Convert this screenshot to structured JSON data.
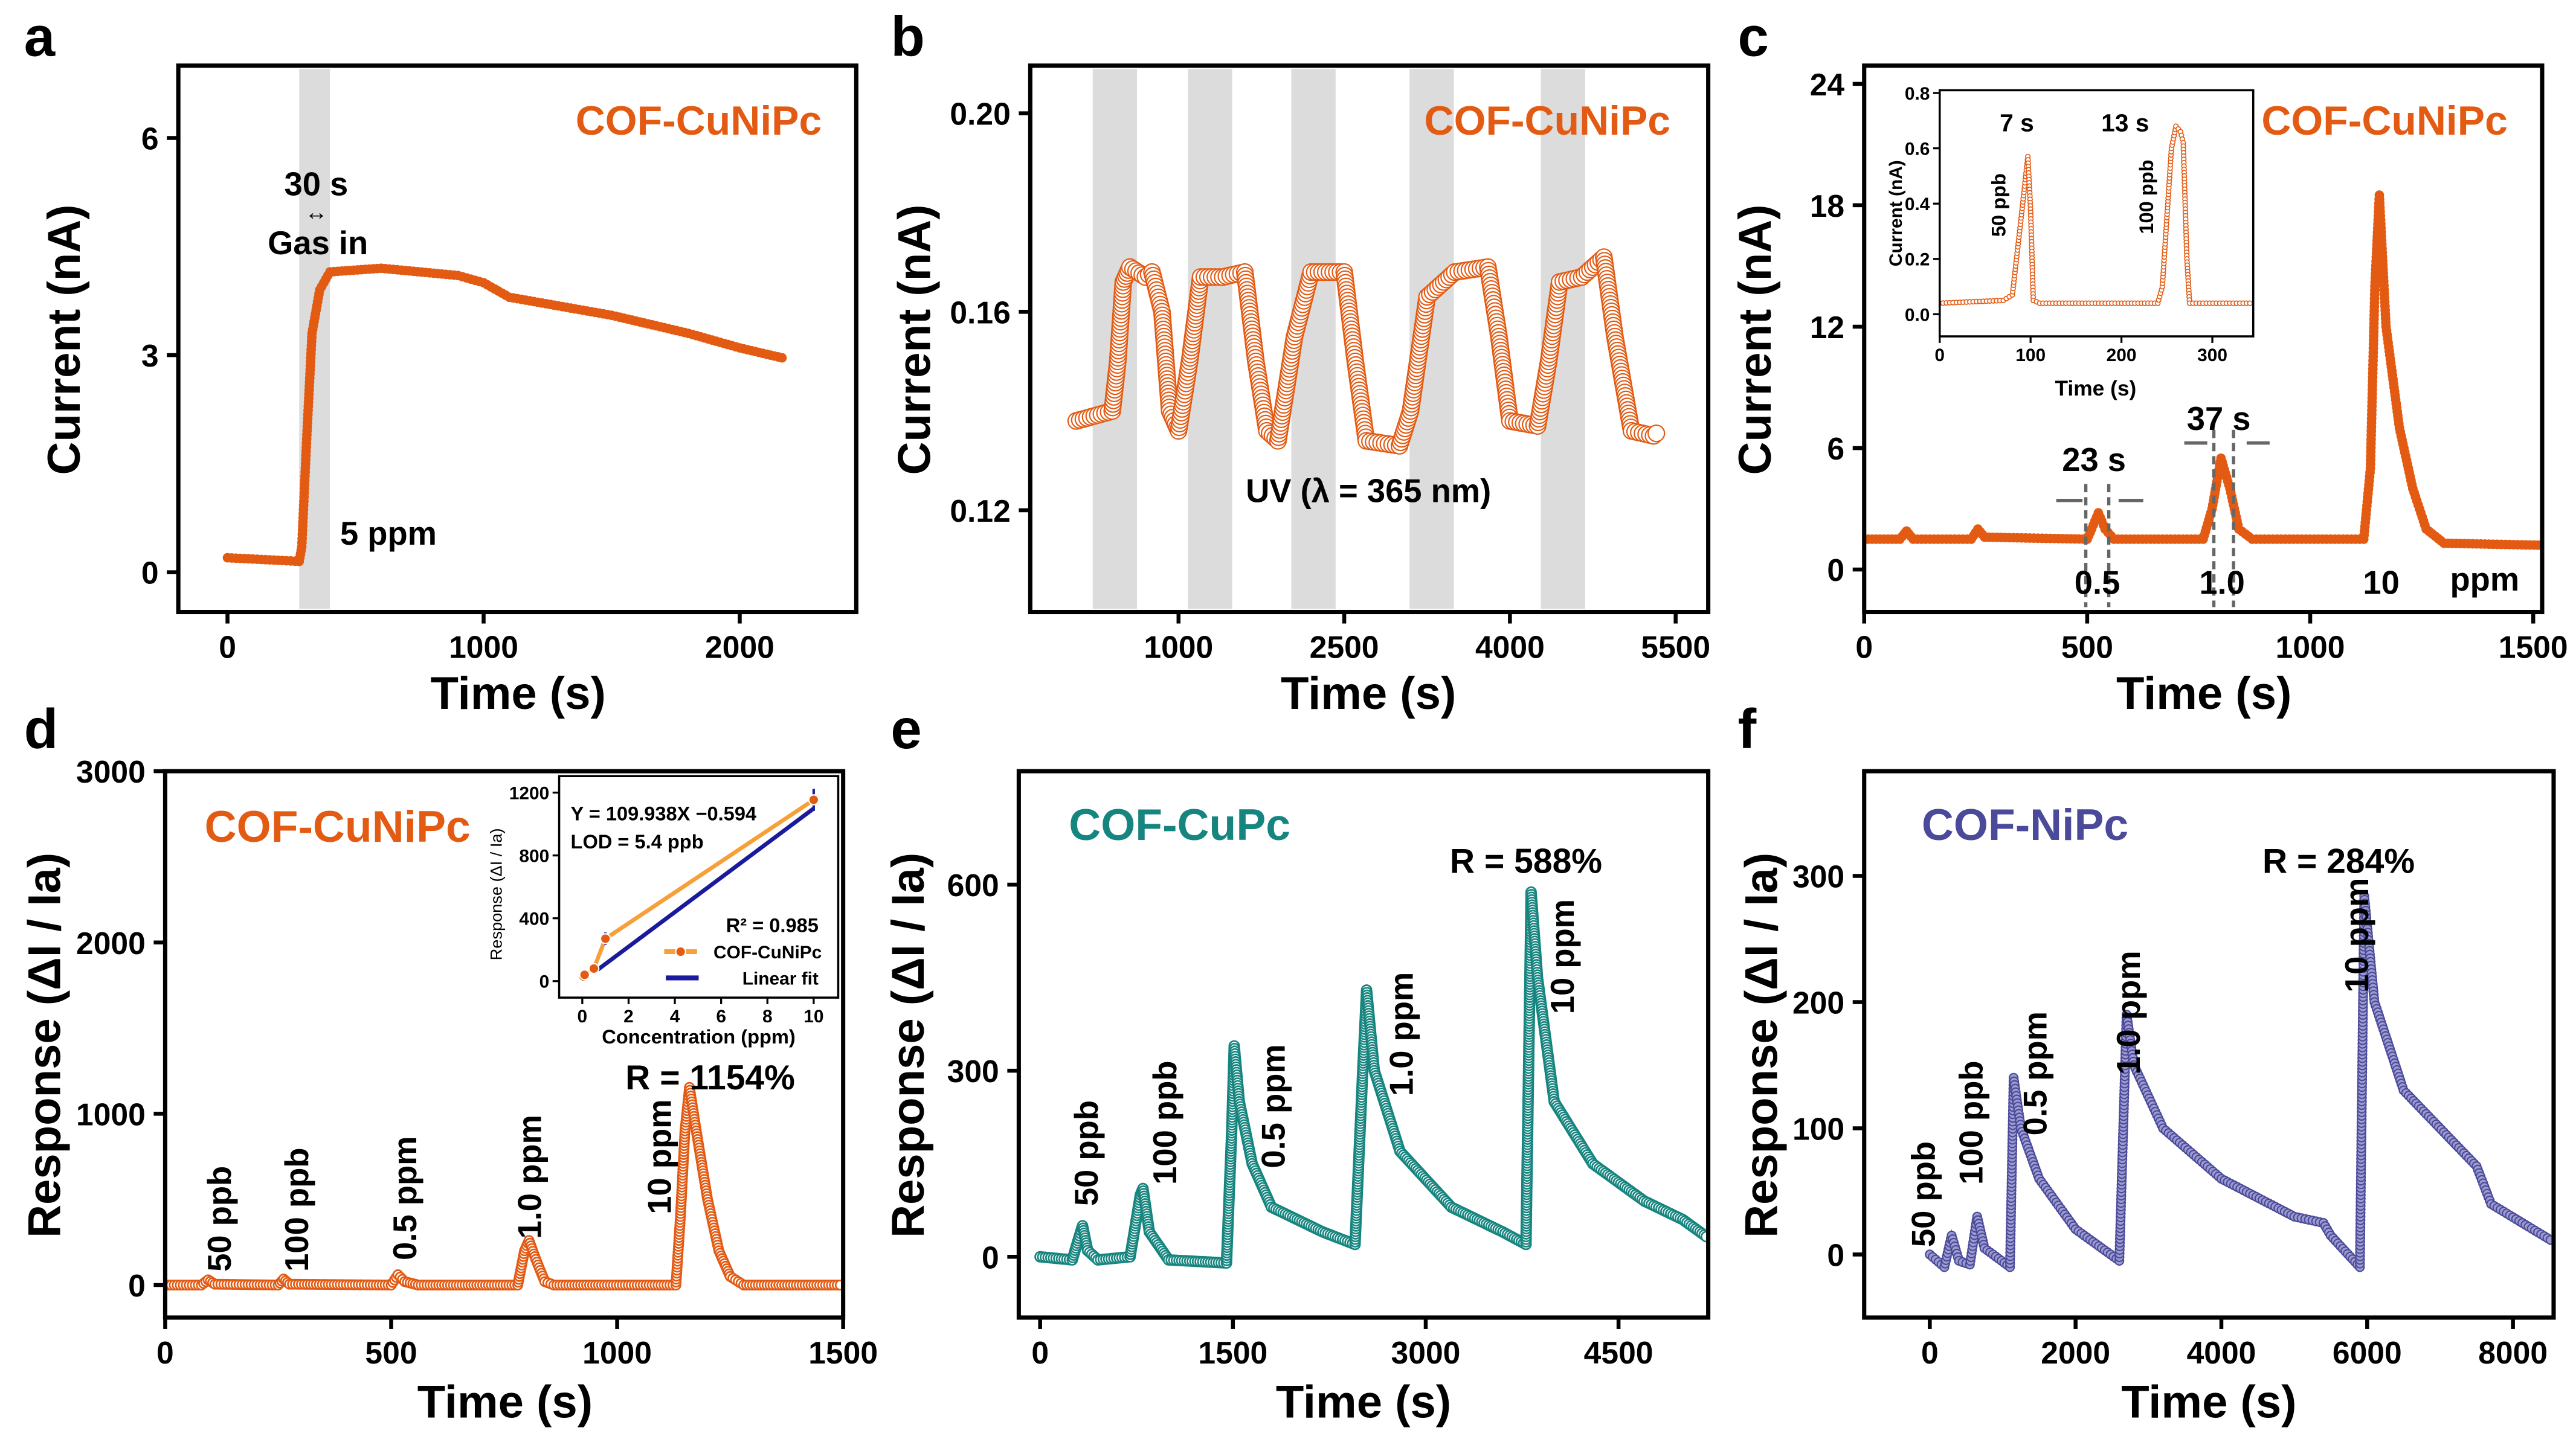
{
  "colors": {
    "cunipc": "#e35a12",
    "cunipc_legend": "#f7a03a",
    "cupc": "#17857f",
    "nipc": "#4b4a9a",
    "nipc_fill": "#9d9cd0",
    "ratio": "#ff1a1a",
    "annotation": "#4a4a6e",
    "gas_in": "#9a5416",
    "fit": "#1a1a9c",
    "shade": "#dcdcdc"
  },
  "panels": {
    "a": {
      "letter": "a",
      "name": "COF-CuNiPc",
      "time": "30 s",
      "gas_in": "Gas in",
      "conc": "5 ppm"
    },
    "b": {
      "letter": "b",
      "name": "COF-CuNiPc",
      "uv": "UV (λ = 365 nm)"
    },
    "c": {
      "letter": "c",
      "name": "COF-CuNiPc",
      "t1": "23 s",
      "t2": "37 s",
      "c1": "0.5",
      "c2": "1.0",
      "c3": "10",
      "unit": "ppm",
      "inset": {
        "t1": "7 s",
        "t2": "13 s",
        "c1": "50 ppb",
        "c2": "100 ppb"
      }
    },
    "d": {
      "letter": "d",
      "name": "COF-CuNiPc",
      "ratio": "R = 1154%",
      "labels": [
        "50 ppb",
        "100 ppb",
        "0.5 ppm",
        "1.0 ppm",
        "10 ppm"
      ],
      "inset": {
        "equation": "Y = 109.938X −0.594",
        "lod": "LOD = 5.4 ppb",
        "r2": "R² = 0.985",
        "legend_data": "COF-CuNiPc",
        "legend_fit": "Linear fit"
      }
    },
    "e": {
      "letter": "e",
      "name": "COF-CuPc",
      "ratio": "R = 588%",
      "labels": [
        "50 ppb",
        "100 ppb",
        "0.5 ppm",
        "1.0 ppm",
        "10 ppm"
      ]
    },
    "f": {
      "letter": "f",
      "name": "COF-NiPc",
      "ratio": "R = 284%",
      "labels": [
        "50 ppb",
        "100 ppb",
        "0.5 ppm",
        "1.0 ppm",
        "10 ppm"
      ]
    }
  },
  "chart_data": [
    {
      "id": "a",
      "type": "line",
      "xlabel": "Time (s)",
      "ylabel": "Current (nA)",
      "xlim": [
        -192,
        2455
      ],
      "ylim": [
        -0.55,
        7.0
      ],
      "xticks": [
        "0",
        "1000",
        "2000"
      ],
      "yticks": [
        "0",
        "3",
        "6"
      ],
      "shaded": [
        [
          280,
          400
        ]
      ],
      "marker": "filled-circle",
      "series": [
        {
          "name": "COF-CuNiPc",
          "points": [
            [
              0,
              0.2
            ],
            [
              280,
              0.15
            ],
            [
              290,
              0.35
            ],
            [
              310,
              1.9
            ],
            [
              330,
              3.3
            ],
            [
              360,
              3.9
            ],
            [
              400,
              4.15
            ],
            [
              600,
              4.2
            ],
            [
              900,
              4.1
            ],
            [
              1000,
              4.0
            ],
            [
              1100,
              3.8
            ],
            [
              1500,
              3.55
            ],
            [
              1800,
              3.3
            ],
            [
              2000,
              3.1
            ],
            [
              2180,
              2.95
            ]
          ]
        }
      ]
    },
    {
      "id": "b",
      "type": "line",
      "xlabel": "Time (s)",
      "ylabel": "Current (nA)",
      "xlim": [
        -342,
        5795
      ],
      "ylim": [
        0.0995,
        0.2096
      ],
      "xticks": [
        "1000",
        "2500",
        "4000",
        "5500"
      ],
      "yticks": [
        "0.12",
        "0.16",
        "0.20"
      ],
      "shaded": [
        [
          223,
          624
        ],
        [
          1085,
          1486
        ],
        [
          2021,
          2422
        ],
        [
          3091,
          3492
        ],
        [
          4280,
          4681
        ]
      ],
      "marker": "hollow-circle",
      "series": [
        {
          "name": "COF-CuNiPc",
          "points": [
            [
              74,
              0.138
            ],
            [
              400,
              0.14
            ],
            [
              450,
              0.15
            ],
            [
              500,
              0.166
            ],
            [
              560,
              0.169
            ],
            [
              700,
              0.167
            ],
            [
              760,
              0.168
            ],
            [
              850,
              0.16
            ],
            [
              920,
              0.14
            ],
            [
              1000,
              0.136
            ],
            [
              1100,
              0.15
            ],
            [
              1200,
              0.167
            ],
            [
              1400,
              0.167
            ],
            [
              1600,
              0.168
            ],
            [
              1700,
              0.15
            ],
            [
              1800,
              0.136
            ],
            [
              1900,
              0.134
            ],
            [
              2050,
              0.155
            ],
            [
              2200,
              0.168
            ],
            [
              2500,
              0.168
            ],
            [
              2600,
              0.15
            ],
            [
              2700,
              0.134
            ],
            [
              3000,
              0.133
            ],
            [
              3100,
              0.14
            ],
            [
              3250,
              0.163
            ],
            [
              3500,
              0.168
            ],
            [
              3800,
              0.169
            ],
            [
              3900,
              0.155
            ],
            [
              4000,
              0.138
            ],
            [
              4250,
              0.137
            ],
            [
              4350,
              0.15
            ],
            [
              4450,
              0.166
            ],
            [
              4650,
              0.167
            ],
            [
              4850,
              0.171
            ],
            [
              4950,
              0.155
            ],
            [
              5100,
              0.136
            ],
            [
              5300,
              0.135
            ],
            [
              5350,
              0.136
            ]
          ]
        }
      ]
    },
    {
      "id": "c",
      "type": "line",
      "xlabel": "Time (s)",
      "ylabel": "Current (nA)",
      "xlim": [
        0,
        1520
      ],
      "ylim": [
        -2.1,
        24.9
      ],
      "xticks": [
        "0",
        "500",
        "1000",
        "1500"
      ],
      "yticks": [
        "0",
        "6",
        "12",
        "18",
        "24"
      ],
      "marker": "filled-circle",
      "series": [
        {
          "name": "COF-CuNiPc",
          "points": [
            [
              0,
              1.5
            ],
            [
              80,
              1.5
            ],
            [
              95,
              1.9
            ],
            [
              110,
              1.5
            ],
            [
              240,
              1.5
            ],
            [
              255,
              2.0
            ],
            [
              270,
              1.6
            ],
            [
              500,
              1.5
            ],
            [
              510,
              2.0
            ],
            [
              525,
              2.8
            ],
            [
              540,
              2.0
            ],
            [
              560,
              1.5
            ],
            [
              760,
              1.5
            ],
            [
              780,
              3
            ],
            [
              800,
              5.5
            ],
            [
              820,
              4
            ],
            [
              840,
              2
            ],
            [
              870,
              1.5
            ],
            [
              1120,
              1.5
            ],
            [
              1135,
              5
            ],
            [
              1145,
              14
            ],
            [
              1155,
              18.5
            ],
            [
              1170,
              12
            ],
            [
              1200,
              7
            ],
            [
              1230,
              4
            ],
            [
              1260,
              2
            ],
            [
              1300,
              1.3
            ],
            [
              1520,
              1.2
            ]
          ]
        }
      ]
    },
    {
      "id": "c-inset",
      "type": "line",
      "xlabel": "Time (s)",
      "ylabel": "Current (nA)",
      "xlim": [
        0,
        345
      ],
      "ylim": [
        -0.08,
        0.81
      ],
      "xticks": [
        "0",
        "100",
        "200",
        "300"
      ],
      "yticks": [
        "0.0",
        "0.2",
        "0.4",
        "0.6",
        "0.8"
      ],
      "marker": "small-circle",
      "series": [
        {
          "name": "COF-CuNiPc",
          "points": [
            [
              0,
              0.04
            ],
            [
              70,
              0.05
            ],
            [
              80,
              0.07
            ],
            [
              90,
              0.36
            ],
            [
              95,
              0.51
            ],
            [
              97,
              0.57
            ],
            [
              100,
              0.38
            ],
            [
              103,
              0.05
            ],
            [
              110,
              0.04
            ],
            [
              240,
              0.04
            ],
            [
              245,
              0.1
            ],
            [
              250,
              0.35
            ],
            [
              255,
              0.6
            ],
            [
              260,
              0.68
            ],
            [
              265,
              0.66
            ],
            [
              268,
              0.62
            ],
            [
              272,
              0.2
            ],
            [
              275,
              0.04
            ],
            [
              345,
              0.04
            ]
          ]
        }
      ]
    },
    {
      "id": "d",
      "type": "line",
      "xlabel": "Time (s)",
      "ylabel": "Response (ΔI / Ia)",
      "xlim": [
        0,
        1500
      ],
      "ylim": [
        -190,
        3000
      ],
      "xticks": [
        "0",
        "500",
        "1000",
        "1500"
      ],
      "yticks": [
        "0",
        "1000",
        "2000",
        "3000"
      ],
      "marker": "hollow-circle",
      "series": [
        {
          "name": "COF-CuNiPc",
          "points": [
            [
              0,
              0
            ],
            [
              80,
              0
            ],
            [
              95,
              30
            ],
            [
              110,
              5
            ],
            [
              250,
              0
            ],
            [
              262,
              35
            ],
            [
              275,
              5
            ],
            [
              500,
              0
            ],
            [
              515,
              60
            ],
            [
              530,
              20
            ],
            [
              560,
              0
            ],
            [
              780,
              0
            ],
            [
              795,
              200
            ],
            [
              805,
              260
            ],
            [
              820,
              150
            ],
            [
              840,
              20
            ],
            [
              860,
              0
            ],
            [
              1130,
              0
            ],
            [
              1140,
              400
            ],
            [
              1150,
              900
            ],
            [
              1160,
              1154
            ],
            [
              1175,
              900
            ],
            [
              1200,
              500
            ],
            [
              1225,
              200
            ],
            [
              1250,
              50
            ],
            [
              1280,
              0
            ],
            [
              1500,
              0
            ]
          ]
        }
      ]
    },
    {
      "id": "d-inset",
      "type": "scatter",
      "xlabel": "Concentration (ppm)",
      "ylabel": "Response (ΔI / Ia)",
      "xlim": [
        -1.0,
        11.06
      ],
      "ylim": [
        -105,
        1305
      ],
      "xticks": [
        "0",
        "2",
        "4",
        "6",
        "8",
        "10"
      ],
      "yticks": [
        "0",
        "400",
        "800",
        "1200"
      ],
      "series": [
        {
          "name": "COF-CuNiPc",
          "x": [
            0.05,
            0.1,
            0.5,
            1,
            10
          ],
          "y": [
            30,
            40,
            80,
            270,
            1154
          ],
          "error": [
            30,
            25,
            35,
            40,
            70
          ]
        },
        {
          "name": "Linear fit",
          "slope": 109.938,
          "intercept": -0.594,
          "x_range": [
            0.5,
            10
          ]
        }
      ]
    },
    {
      "id": "e",
      "type": "line",
      "xlabel": "Time (s)",
      "ylabel": "Response (ΔI / Ia)",
      "xlim": [
        -166,
        5198
      ],
      "ylim": [
        -98,
        783
      ],
      "xticks": [
        "0",
        "1500",
        "3000",
        "4500"
      ],
      "yticks": [
        "0",
        "300",
        "600"
      ],
      "marker": "hollow-circle",
      "series": [
        {
          "name": "COF-CuPc",
          "points": [
            [
              0,
              0
            ],
            [
              250,
              -5
            ],
            [
              300,
              30
            ],
            [
              330,
              50
            ],
            [
              370,
              10
            ],
            [
              450,
              -5
            ],
            [
              700,
              0
            ],
            [
              780,
              100
            ],
            [
              800,
              110
            ],
            [
              850,
              40
            ],
            [
              1000,
              -5
            ],
            [
              1450,
              -10
            ],
            [
              1490,
              200
            ],
            [
              1510,
              340
            ],
            [
              1550,
              250
            ],
            [
              1650,
              150
            ],
            [
              1800,
              80
            ],
            [
              2200,
              40
            ],
            [
              2450,
              20
            ],
            [
              2510,
              300
            ],
            [
              2540,
              430
            ],
            [
              2600,
              300
            ],
            [
              2800,
              170
            ],
            [
              3200,
              80
            ],
            [
              3600,
              40
            ],
            [
              3780,
              20
            ],
            [
              3800,
              300
            ],
            [
              3820,
              588
            ],
            [
              3870,
              450
            ],
            [
              4000,
              250
            ],
            [
              4300,
              150
            ],
            [
              4700,
              90
            ],
            [
              5000,
              60
            ],
            [
              5200,
              30
            ]
          ]
        }
      ]
    },
    {
      "id": "f",
      "type": "line",
      "xlabel": "Time (s)",
      "ylabel": "Response (ΔI / Ia)",
      "xlim": [
        -900,
        8558
      ],
      "ylim": [
        -50,
        383
      ],
      "xticks": [
        "0",
        "2000",
        "4000",
        "6000",
        "8000"
      ],
      "yticks": [
        "0",
        "100",
        "200",
        "300"
      ],
      "marker": "filled-circle",
      "series": [
        {
          "name": "COF-NiPc",
          "points": [
            [
              0,
              0
            ],
            [
              200,
              -10
            ],
            [
              300,
              15
            ],
            [
              400,
              -5
            ],
            [
              550,
              -8
            ],
            [
              650,
              30
            ],
            [
              750,
              5
            ],
            [
              1100,
              -10
            ],
            [
              1150,
              140
            ],
            [
              1250,
              100
            ],
            [
              1500,
              60
            ],
            [
              2000,
              20
            ],
            [
              2600,
              -5
            ],
            [
              2700,
              190
            ],
            [
              2800,
              150
            ],
            [
              3200,
              100
            ],
            [
              4000,
              60
            ],
            [
              5000,
              30
            ],
            [
              5400,
              25
            ],
            [
              5500,
              15
            ],
            [
              5900,
              -10
            ],
            [
              5960,
              284
            ],
            [
              6100,
              200
            ],
            [
              6500,
              130
            ],
            [
              7500,
              70
            ],
            [
              7700,
              40
            ],
            [
              8558,
              10
            ]
          ]
        }
      ]
    }
  ]
}
